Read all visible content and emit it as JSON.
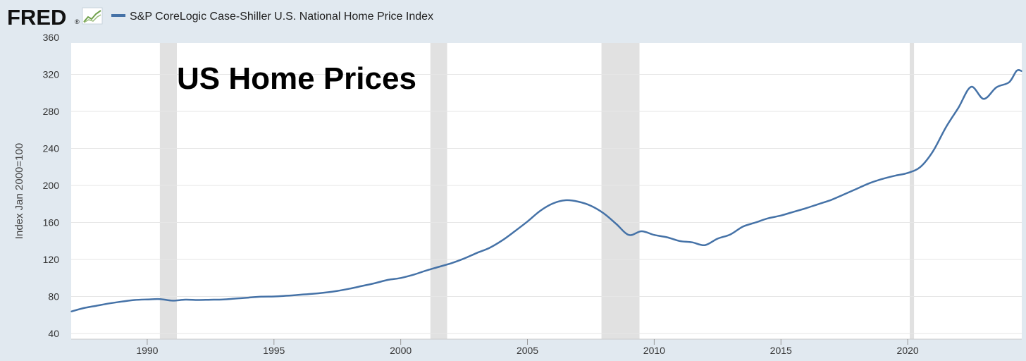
{
  "header": {
    "logo_text": "FRED",
    "logo_mark": "®",
    "logo_icon": "fred-line-chart-icon"
  },
  "colors": {
    "page_bg": "#e1e9f0",
    "plot_bg": "#ffffff",
    "series": "#4572a7",
    "recession": "#e1e1e1",
    "grid": "#e6e6e6"
  },
  "chart_data": {
    "type": "line",
    "title": "",
    "annotation": "US Home Prices",
    "xlabel": "",
    "ylabel": "Index Jan 2000=100",
    "xlim": [
      1987.0,
      2024.5
    ],
    "ylim": [
      40,
      360
    ],
    "x_ticks": [
      1990,
      1995,
      2000,
      2005,
      2010,
      2015,
      2020
    ],
    "y_ticks": [
      40,
      80,
      120,
      160,
      200,
      240,
      280,
      320,
      360
    ],
    "grid": "horizontal",
    "legend_position": "top-left",
    "recessions": [
      [
        1990.5,
        1991.17
      ],
      [
        2001.17,
        2001.83
      ],
      [
        2007.92,
        2009.42
      ],
      [
        2020.08,
        2020.25
      ]
    ],
    "series": [
      {
        "name": "S&P CoreLogic Case-Shiller U.S. National Home Price Index",
        "x": [
          1987.0,
          1987.5,
          1988.0,
          1988.5,
          1989.0,
          1989.5,
          1990.0,
          1990.5,
          1991.0,
          1991.5,
          1992.0,
          1992.5,
          1993.0,
          1993.5,
          1994.0,
          1994.5,
          1995.0,
          1995.5,
          1996.0,
          1996.5,
          1997.0,
          1997.5,
          1998.0,
          1998.5,
          1999.0,
          1999.5,
          2000.0,
          2000.5,
          2001.0,
          2001.5,
          2002.0,
          2002.5,
          2003.0,
          2003.5,
          2004.0,
          2004.5,
          2005.0,
          2005.5,
          2006.0,
          2006.5,
          2007.0,
          2007.5,
          2008.0,
          2008.5,
          2009.0,
          2009.5,
          2010.0,
          2010.5,
          2011.0,
          2011.5,
          2012.0,
          2012.5,
          2013.0,
          2013.5,
          2014.0,
          2014.5,
          2015.0,
          2015.5,
          2016.0,
          2016.5,
          2017.0,
          2017.5,
          2018.0,
          2018.5,
          2019.0,
          2019.5,
          2020.0,
          2020.5,
          2021.0,
          2021.5,
          2022.0,
          2022.5,
          2023.0,
          2023.5,
          2024.0,
          2024.3,
          2024.5
        ],
        "values": [
          63.8,
          67.5,
          70.0,
          72.5,
          74.5,
          76.2,
          76.8,
          77.2,
          75.5,
          76.6,
          76.2,
          76.5,
          76.8,
          77.8,
          78.8,
          79.8,
          80.0,
          80.8,
          81.8,
          82.8,
          84.2,
          86.0,
          88.5,
          91.5,
          94.5,
          98.0,
          100.0,
          103.5,
          108.0,
          112.0,
          116.0,
          121.0,
          127.0,
          132.5,
          140.5,
          150.5,
          161.0,
          172.5,
          180.5,
          184.0,
          182.5,
          178.0,
          170.0,
          158.5,
          146.5,
          150.5,
          146.5,
          144.0,
          140.0,
          138.5,
          135.5,
          142.5,
          147.0,
          155.5,
          160.0,
          164.5,
          167.5,
          171.5,
          175.5,
          180.0,
          184.5,
          190.5,
          196.5,
          202.5,
          207.0,
          210.5,
          213.5,
          220.0,
          237.0,
          262.5,
          284.0,
          306.5,
          293.5,
          306.0,
          311.5,
          324.0,
          323.5
        ]
      }
    ]
  }
}
